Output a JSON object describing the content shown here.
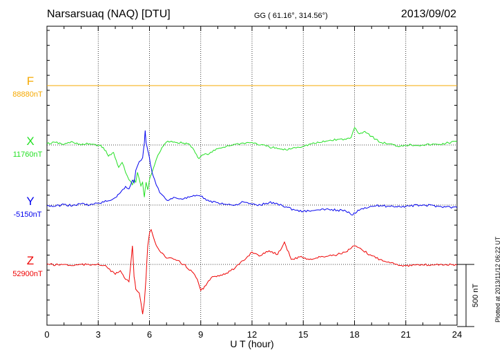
{
  "header": {
    "station": "Narsarsuaq (NAQ)  [DTU]",
    "coords": "GG ( 61.16°, 314.56°)",
    "date": "2013/09/02"
  },
  "plotted_note": "Plotted at 2013/11/12 06:22 UT",
  "chart_data": {
    "type": "line",
    "title": "Narsarsuaq (NAQ)  [DTU]",
    "xlabel": "U T (hour)",
    "xlim": [
      0,
      24
    ],
    "xticks": [
      "0",
      "3",
      "6",
      "9",
      "12",
      "15",
      "18",
      "21",
      "24"
    ],
    "scale_bar": {
      "label": "500 nT",
      "value_nT": 500
    },
    "series": [
      {
        "name": "F",
        "baseline_label": "88880nT",
        "baseline_nT": 88880,
        "color": "#f5a800",
        "x": [
          0,
          24
        ],
        "y": [
          0,
          0
        ]
      },
      {
        "name": "X",
        "baseline_label": "11760nT",
        "baseline_nT": 11760,
        "color": "#22e022",
        "x": [
          0,
          0.5,
          1,
          1.5,
          2,
          2.5,
          3,
          3.3,
          3.6,
          3.9,
          4.2,
          4.4,
          4.6,
          4.8,
          5.0,
          5.1,
          5.2,
          5.3,
          5.5,
          5.6,
          5.7,
          5.8,
          5.9,
          6.0,
          6.1,
          6.3,
          6.5,
          6.8,
          7.0,
          7.3,
          7.6,
          8.0,
          8.3,
          8.6,
          8.9,
          9.1,
          9.5,
          10,
          10.5,
          11,
          11.5,
          12,
          12.5,
          13,
          13.5,
          14,
          14.5,
          15,
          15.5,
          16,
          16.5,
          17,
          17.5,
          17.8,
          18.0,
          18.3,
          18.6,
          19,
          19.5,
          20,
          20.5,
          21,
          22,
          23,
          24
        ],
        "y": [
          10,
          20,
          5,
          25,
          0,
          10,
          0,
          -20,
          -90,
          -60,
          -180,
          -140,
          -220,
          -280,
          -320,
          -280,
          -300,
          -220,
          -330,
          -300,
          -420,
          -300,
          -360,
          -280,
          -240,
          -160,
          -80,
          -10,
          25,
          30,
          20,
          15,
          10,
          -40,
          -110,
          -80,
          -70,
          -30,
          -10,
          5,
          15,
          20,
          0,
          -15,
          -30,
          -40,
          -20,
          -10,
          10,
          20,
          35,
          45,
          45,
          60,
          140,
          90,
          110,
          70,
          20,
          10,
          -10,
          0,
          0,
          5,
          30
        ]
      },
      {
        "name": "Y",
        "baseline_label": "-5150nT",
        "baseline_nT": -5150,
        "color": "#0000ee",
        "x": [
          0,
          0.5,
          1,
          1.5,
          2,
          2.5,
          3,
          3.5,
          4,
          4.3,
          4.6,
          4.8,
          5.0,
          5.1,
          5.2,
          5.4,
          5.6,
          5.7,
          5.75,
          5.8,
          5.9,
          6.0,
          6.1,
          6.2,
          6.4,
          6.6,
          7.0,
          7.5,
          8.0,
          8.5,
          9.0,
          9.5,
          10,
          10.5,
          11,
          11.5,
          12,
          12.5,
          13,
          13.5,
          14,
          14.5,
          15,
          15.5,
          16,
          16.5,
          17,
          17.5,
          17.9,
          18.2,
          18.6,
          19,
          19.5,
          20,
          21,
          22,
          23,
          24
        ],
        "y": [
          -5,
          -10,
          5,
          -5,
          10,
          0,
          15,
          30,
          60,
          100,
          150,
          130,
          200,
          180,
          280,
          350,
          380,
          500,
          600,
          500,
          440,
          380,
          300,
          240,
          160,
          100,
          40,
          60,
          50,
          70,
          70,
          30,
          20,
          5,
          0,
          25,
          5,
          0,
          20,
          10,
          -15,
          -40,
          -50,
          -45,
          -40,
          -35,
          -40,
          -50,
          -80,
          -40,
          -20,
          -10,
          -5,
          -10,
          -10,
          0,
          -10,
          -20
        ]
      },
      {
        "name": "Z",
        "baseline_label": "52900nT",
        "baseline_nT": 52900,
        "color": "#ee0000",
        "x": [
          0,
          0.5,
          1,
          1.5,
          2,
          2.5,
          3,
          3.5,
          4.0,
          4.3,
          4.6,
          4.8,
          5.0,
          5.1,
          5.2,
          5.4,
          5.6,
          5.7,
          5.8,
          5.9,
          6.0,
          6.1,
          6.3,
          6.5,
          7.0,
          7.5,
          8.0,
          8.5,
          8.8,
          9.0,
          9.3,
          9.6,
          10,
          10.5,
          11,
          11.5,
          12,
          12.5,
          13,
          13.5,
          13.9,
          14.3,
          14.8,
          15.5,
          16,
          16.5,
          17,
          17.5,
          17.8,
          18.0,
          18.5,
          19,
          19.5,
          20,
          20.5,
          21,
          22,
          23,
          24
        ],
        "y": [
          5,
          -5,
          0,
          -10,
          0,
          -5,
          5,
          -20,
          -80,
          -50,
          -120,
          -140,
          150,
          -100,
          -200,
          -230,
          -400,
          -300,
          -100,
          150,
          250,
          280,
          190,
          130,
          50,
          40,
          0,
          -60,
          -120,
          -210,
          -170,
          -110,
          -90,
          -70,
          -30,
          30,
          100,
          70,
          110,
          80,
          180,
          40,
          60,
          40,
          60,
          70,
          80,
          100,
          130,
          150,
          110,
          70,
          40,
          20,
          0,
          -10,
          -5,
          0,
          -5
        ]
      }
    ]
  }
}
